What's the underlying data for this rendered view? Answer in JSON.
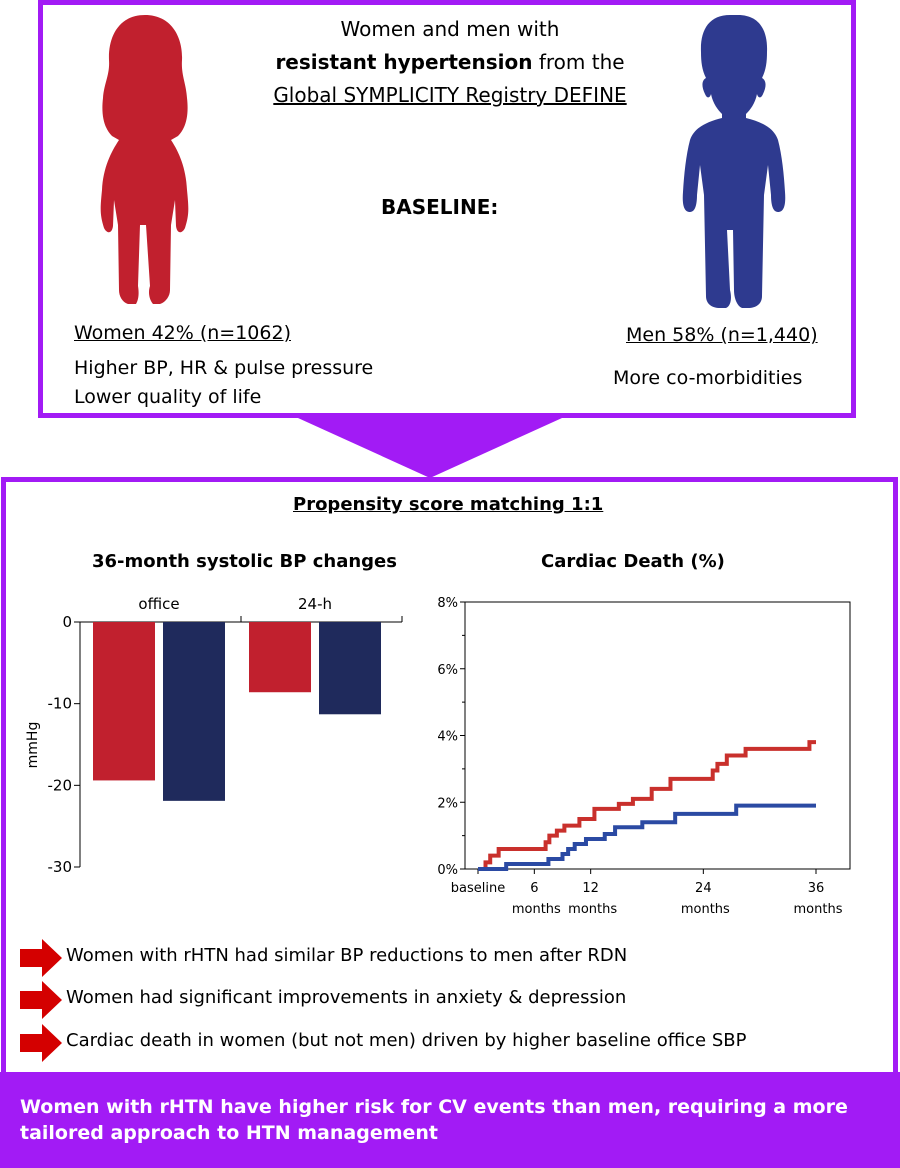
{
  "header": {
    "line1": "Women and men with",
    "line2_bold": "resistant hypertension",
    "line2_rest": " from the",
    "line3": "Global SYMPLICITY Registry DEFINE",
    "baseline": "BASELINE:"
  },
  "women": {
    "title": "Women 42% (n=1062)",
    "finding1": "Higher BP, HR & pulse pressure",
    "finding2": "Lower quality of life",
    "icon": "woman-figure-icon",
    "color": "#c1202e"
  },
  "men": {
    "title": "Men 58% (n=1,440)",
    "finding1": "More co-morbidities",
    "icon": "man-figure-icon",
    "color": "#2e3a8f"
  },
  "matching": {
    "title": "Propensity score matching 1:1"
  },
  "chart_data": [
    {
      "type": "bar",
      "title": "36-month systolic BP changes",
      "ylabel": "mmHg",
      "ylim": [
        -30,
        0
      ],
      "yticks": [
        "0",
        "-10",
        "-20",
        "-30"
      ],
      "yticks_values": [
        0,
        -10,
        -20,
        -30
      ],
      "categories": [
        "office",
        "24-h"
      ],
      "series": [
        {
          "color": "#c1202e",
          "values": [
            -19.4,
            -8.6
          ]
        },
        {
          "color": "#1f2a5c",
          "values": [
            -21.9,
            -11.3
          ]
        }
      ]
    },
    {
      "type": "line",
      "title": "Cardiac Death (%)",
      "ylim": [
        0,
        8
      ],
      "yticks": [
        "0%",
        "2%",
        "4%",
        "6%",
        "8%"
      ],
      "yticks_values": [
        0,
        2,
        4,
        6,
        8
      ],
      "xlim": [
        0,
        36
      ],
      "xticks": [
        {
          "value": 0,
          "line1": "baseline",
          "line2": ""
        },
        {
          "value": 6,
          "line1": "6",
          "line2": "months"
        },
        {
          "value": 12,
          "line1": "12",
          "line2": "months"
        },
        {
          "value": 24,
          "line1": "24",
          "line2": "months"
        },
        {
          "value": 36,
          "line1": "36",
          "line2": "months"
        }
      ],
      "series": [
        {
          "color": "#c9302c",
          "points": [
            [
              0,
              0
            ],
            [
              0.8,
              0.2
            ],
            [
              1.3,
              0.4
            ],
            [
              2.2,
              0.6
            ],
            [
              7.2,
              0.8
            ],
            [
              7.6,
              1.0
            ],
            [
              8.4,
              1.15
            ],
            [
              9.2,
              1.3
            ],
            [
              10.8,
              1.5
            ],
            [
              12.4,
              1.8
            ],
            [
              15,
              1.95
            ],
            [
              16.5,
              2.1
            ],
            [
              18.5,
              2.4
            ],
            [
              20.5,
              2.7
            ],
            [
              25,
              2.95
            ],
            [
              25.5,
              3.15
            ],
            [
              26.5,
              3.4
            ],
            [
              28.5,
              3.6
            ],
            [
              35.3,
              3.8
            ],
            [
              36,
              3.8
            ]
          ]
        },
        {
          "color": "#2b4aa3",
          "points": [
            [
              0,
              0
            ],
            [
              3,
              0.15
            ],
            [
              7.5,
              0.3
            ],
            [
              9,
              0.45
            ],
            [
              9.6,
              0.6
            ],
            [
              10.3,
              0.75
            ],
            [
              11.5,
              0.9
            ],
            [
              13.5,
              1.05
            ],
            [
              14.6,
              1.25
            ],
            [
              17.5,
              1.4
            ],
            [
              21,
              1.65
            ],
            [
              27.5,
              1.9
            ],
            [
              36,
              1.9
            ]
          ]
        }
      ]
    }
  ],
  "conclusions": [
    "Women with rHTN had similar BP reductions to men after RDN",
    "Women had significant improvements in anxiety & depression",
    "Cardiac death in women (but not men) driven by higher baseline office SBP"
  ],
  "footer": {
    "text": "Women with rHTN have higher risk for CV events than men, requiring a more tailored approach to HTN management"
  },
  "colors": {
    "accent": "#a21bf5",
    "arrow": "#d40000"
  }
}
